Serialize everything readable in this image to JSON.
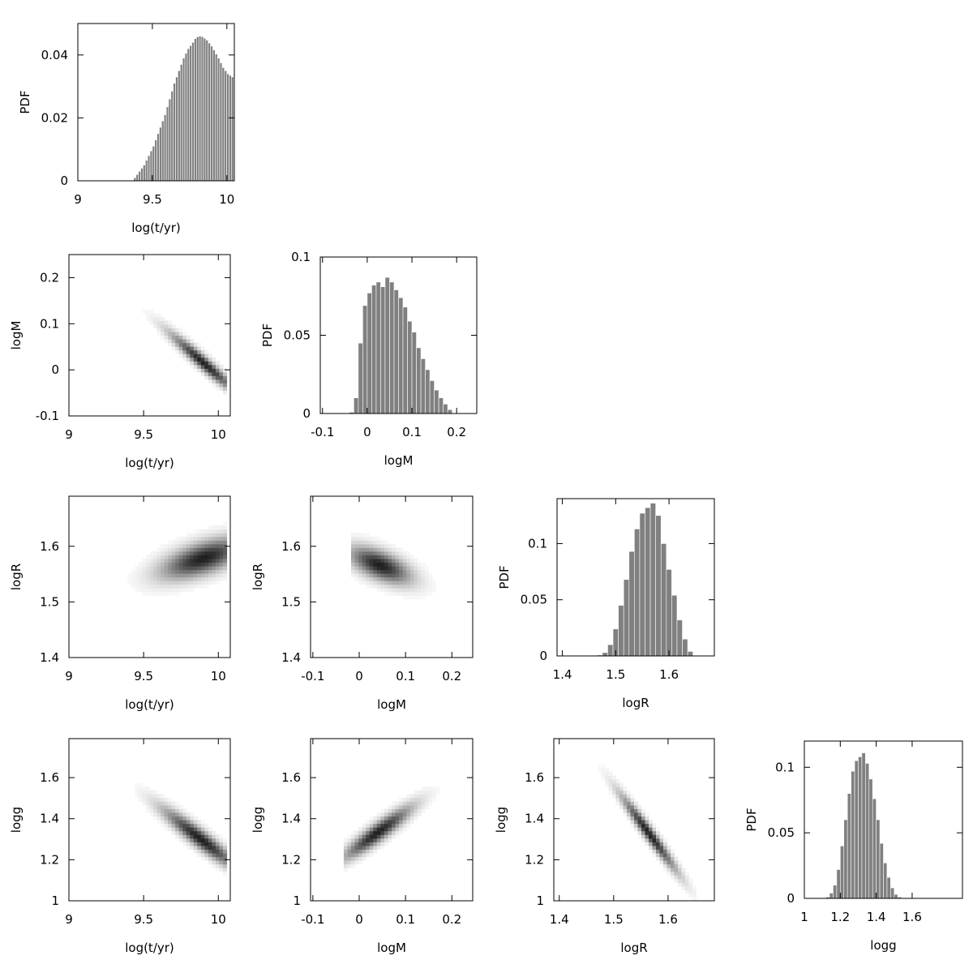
{
  "chart_data": [
    {
      "id": "hist-logt",
      "type": "bar",
      "xlabel": "log(t/yr)",
      "ylabel": "PDF",
      "xlim": [
        9,
        10.05
      ],
      "ylim": [
        0,
        0.05
      ],
      "xticks": [
        9,
        9.5,
        10
      ],
      "xtick_labels": [
        "9",
        "9.5",
        "10"
      ],
      "yticks": [
        0,
        0.02,
        0.04
      ],
      "ytick_labels": [
        "0",
        "0.02",
        "0.04"
      ],
      "bin_start": 9.375,
      "bin_width": 0.0156,
      "values": [
        0.001,
        0.002,
        0.003,
        0.004,
        0.005,
        0.0065,
        0.008,
        0.0095,
        0.011,
        0.013,
        0.015,
        0.017,
        0.019,
        0.021,
        0.0235,
        0.026,
        0.0285,
        0.031,
        0.033,
        0.035,
        0.037,
        0.039,
        0.0405,
        0.042,
        0.043,
        0.044,
        0.0452,
        0.0458,
        0.046,
        0.0458,
        0.0453,
        0.0447,
        0.0438,
        0.0428,
        0.0416,
        0.0403,
        0.039,
        0.0375,
        0.036,
        0.035,
        0.034,
        0.0335,
        0.033,
        0.0325
      ]
    },
    {
      "id": "density-logt-logM",
      "type": "heatmap",
      "xlabel": "log(t/yr)",
      "ylabel": "logM",
      "xlim": [
        9,
        10.08
      ],
      "ylim": [
        -0.1,
        0.25
      ],
      "xticks": [
        9,
        9.5,
        10
      ],
      "xtick_labels": [
        "9",
        "9.5",
        "10"
      ],
      "yticks": [
        -0.1,
        0,
        0.1,
        0.2
      ],
      "ytick_labels": [
        "-0.1",
        "0",
        "0.1",
        "0.2"
      ],
      "support_x": [
        9.4,
        10.05
      ],
      "ridge": {
        "x0": 9.85,
        "y0": 0.03,
        "slope": -0.28,
        "sx": 0.15,
        "sy": 0.012,
        "peak_x": 9.9
      }
    },
    {
      "id": "hist-logM",
      "type": "bar",
      "xlabel": "logM",
      "ylabel": "PDF",
      "xlim": [
        -0.105,
        0.245
      ],
      "ylim": [
        0,
        0.1
      ],
      "xticks": [
        -0.1,
        0,
        0.1,
        0.2
      ],
      "xtick_labels": [
        "-0.1",
        "0",
        "0.1",
        "0.2"
      ],
      "yticks": [
        0,
        0.05,
        0.1
      ],
      "ytick_labels": [
        "0",
        "0.05",
        "0.1"
      ],
      "bin_start": -0.04,
      "bin_width": 0.01,
      "values": [
        0.0008,
        0.01,
        0.045,
        0.069,
        0.077,
        0.082,
        0.084,
        0.081,
        0.087,
        0.084,
        0.079,
        0.074,
        0.068,
        0.059,
        0.052,
        0.042,
        0.035,
        0.028,
        0.021,
        0.015,
        0.01,
        0.006,
        0.0025
      ]
    },
    {
      "id": "density-logt-logR",
      "type": "heatmap",
      "xlabel": "log(t/yr)",
      "ylabel": "logR",
      "xlim": [
        9,
        10.08
      ],
      "ylim": [
        1.4,
        1.69
      ],
      "xticks": [
        9,
        9.5,
        10
      ],
      "xtick_labels": [
        "9",
        "9.5",
        "10"
      ],
      "yticks": [
        1.4,
        1.5,
        1.6
      ],
      "ytick_labels": [
        "1.4",
        "1.5",
        "1.6"
      ],
      "support_x": [
        9.4,
        10.05
      ],
      "ridge": {
        "x0": 9.85,
        "y0": 1.575,
        "slope": 0.08,
        "sx": 0.19,
        "sy": 0.02,
        "peak_x": 9.9
      }
    },
    {
      "id": "density-logM-logR",
      "type": "heatmap",
      "xlabel": "logM",
      "ylabel": "logR",
      "xlim": [
        -0.105,
        0.245
      ],
      "ylim": [
        1.4,
        1.69
      ],
      "xticks": [
        -0.1,
        0,
        0.1,
        0.2
      ],
      "xtick_labels": [
        "-0.1",
        "0",
        "0.1",
        "0.2"
      ],
      "yticks": [
        1.4,
        1.5,
        1.6
      ],
      "ytick_labels": [
        "1.4",
        "1.5",
        "1.6"
      ],
      "support_x": [
        -0.02,
        0.2
      ],
      "ridge": {
        "x0": 0.05,
        "y0": 1.565,
        "slope": -0.3,
        "sx": 0.045,
        "sy": 0.018,
        "peak_x": 0.045
      }
    },
    {
      "id": "hist-logR",
      "type": "bar",
      "xlabel": "logR",
      "ylabel": "PDF",
      "xlim": [
        1.39,
        1.685
      ],
      "ylim": [
        0,
        0.14
      ],
      "xticks": [
        1.4,
        1.5,
        1.6
      ],
      "xtick_labels": [
        "1.4",
        "1.5",
        "1.6"
      ],
      "yticks": [
        0,
        0.05,
        0.1
      ],
      "ytick_labels": [
        "0",
        "0.05",
        "0.1"
      ],
      "bin_start": 1.465,
      "bin_width": 0.01,
      "values": [
        0.0008,
        0.003,
        0.01,
        0.024,
        0.045,
        0.068,
        0.093,
        0.113,
        0.127,
        0.132,
        0.136,
        0.125,
        0.1,
        0.077,
        0.054,
        0.032,
        0.015,
        0.004
      ]
    },
    {
      "id": "density-logt-logg",
      "type": "heatmap",
      "xlabel": "log(t/yr)",
      "ylabel": "logg",
      "xlim": [
        9,
        10.08
      ],
      "ylim": [
        1,
        1.79
      ],
      "xticks": [
        9,
        9.5,
        10
      ],
      "xtick_labels": [
        "9",
        "9.5",
        "10"
      ],
      "yticks": [
        1,
        1.2,
        1.4,
        1.6
      ],
      "ytick_labels": [
        "1",
        "1.2",
        "1.4",
        "1.6"
      ],
      "support_x": [
        9.4,
        10.05
      ],
      "ridge": {
        "x0": 9.85,
        "y0": 1.32,
        "slope": -0.55,
        "sx": 0.17,
        "sy": 0.035,
        "peak_x": 9.88
      }
    },
    {
      "id": "density-logM-logg",
      "type": "heatmap",
      "xlabel": "logM",
      "ylabel": "logg",
      "xlim": [
        -0.105,
        0.245
      ],
      "ylim": [
        1,
        1.79
      ],
      "xticks": [
        -0.1,
        0,
        0.1,
        0.2
      ],
      "xtick_labels": [
        "-0.1",
        "0",
        "0.1",
        "0.2"
      ],
      "yticks": [
        1,
        1.2,
        1.4,
        1.6
      ],
      "ytick_labels": [
        "1",
        "1.2",
        "1.4",
        "1.6"
      ],
      "support_x": [
        -0.03,
        0.2
      ],
      "ridge": {
        "x0": 0.05,
        "y0": 1.35,
        "slope": 1.6,
        "sx": 0.05,
        "sy": 0.035,
        "peak_x": 0.04
      }
    },
    {
      "id": "density-logR-logg",
      "type": "heatmap",
      "xlabel": "logR",
      "ylabel": "logg",
      "xlim": [
        1.39,
        1.685
      ],
      "ylim": [
        1,
        1.79
      ],
      "xticks": [
        1.4,
        1.5,
        1.6
      ],
      "xtick_labels": [
        "1.4",
        "1.5",
        "1.6"
      ],
      "yticks": [
        1,
        1.2,
        1.4,
        1.6
      ],
      "ytick_labels": [
        "1",
        "1.2",
        "1.4",
        "1.6"
      ],
      "support_x": [
        1.47,
        1.65
      ],
      "ridge": {
        "x0": 1.565,
        "y0": 1.33,
        "slope": -3.5,
        "sx": 0.035,
        "sy": 0.03,
        "peak_x": 1.565
      }
    },
    {
      "id": "hist-logg",
      "type": "bar",
      "xlabel": "logg",
      "ylabel": "PDF",
      "xlim": [
        1,
        1.88
      ],
      "ylim": [
        0,
        0.12
      ],
      "xticks": [
        1,
        1.2,
        1.4,
        1.6
      ],
      "xtick_labels": [
        "1",
        "1.2",
        "1.4",
        "1.6"
      ],
      "yticks": [
        0,
        0.05,
        0.1
      ],
      "ytick_labels": [
        "0",
        "0.05",
        "0.1"
      ],
      "bin_start": 1.12,
      "bin_width": 0.02,
      "values": [
        0.001,
        0.004,
        0.01,
        0.022,
        0.04,
        0.06,
        0.08,
        0.097,
        0.105,
        0.108,
        0.111,
        0.103,
        0.091,
        0.076,
        0.06,
        0.042,
        0.027,
        0.016,
        0.008,
        0.003,
        0.001
      ]
    }
  ]
}
